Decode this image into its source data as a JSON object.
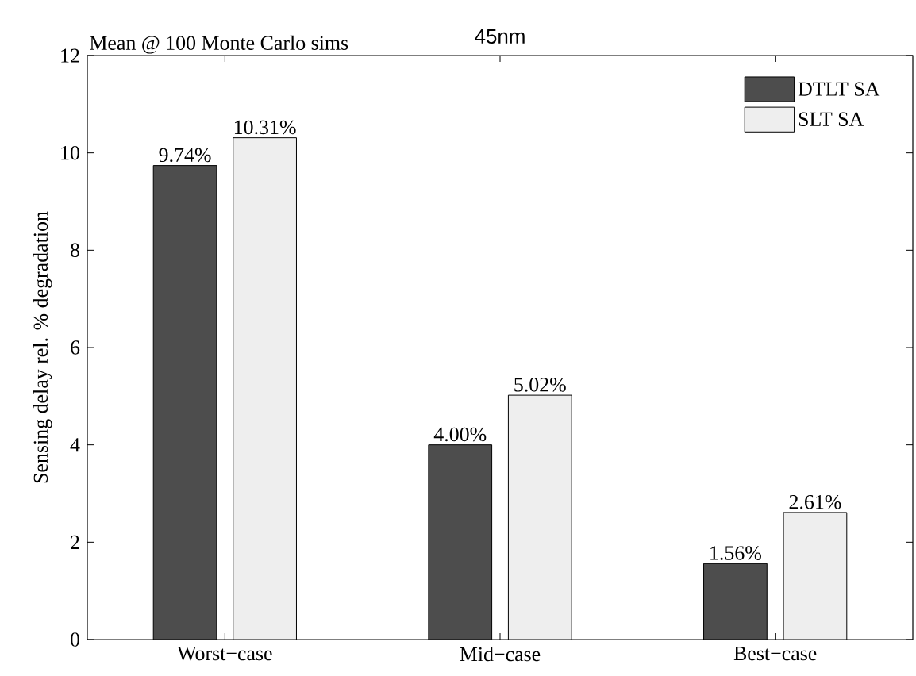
{
  "chart_data": {
    "type": "bar",
    "title": "45nm",
    "ylabel": "Sensing delay rel. % degradation",
    "annotations": [
      "Mean @ 100 Monte Carlo sims"
    ],
    "categories": [
      "Worst−case",
      "Mid−case",
      "Best−case"
    ],
    "series": [
      {
        "name": "DTLT SA",
        "color": "#4d4d4d",
        "values": [
          9.74,
          4.0,
          1.56
        ],
        "value_labels": [
          "9.74%",
          "4.00%",
          "1.56%"
        ]
      },
      {
        "name": "SLT SA",
        "color": "#eeeeee",
        "values": [
          10.31,
          5.02,
          2.61
        ],
        "value_labels": [
          "10.31%",
          "5.02%",
          "2.61%"
        ]
      }
    ],
    "ylim": [
      0,
      12
    ],
    "yticks": [
      0,
      2,
      4,
      6,
      8,
      10,
      12
    ],
    "legend": "top right",
    "grid": false
  }
}
